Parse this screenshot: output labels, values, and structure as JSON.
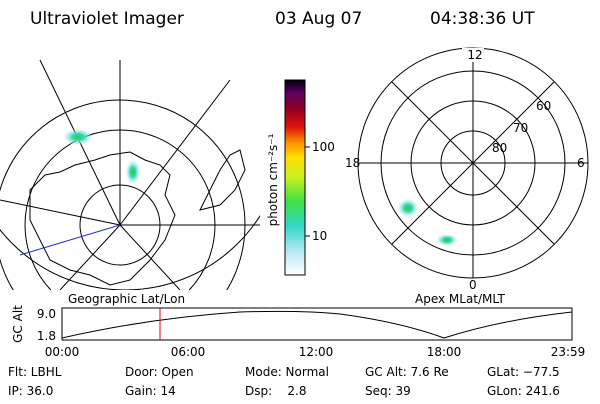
{
  "header": {
    "title": "Ultraviolet Imager",
    "date": "03 Aug 07",
    "time": "04:38:36 UT"
  },
  "colorbar": {
    "label": "photon cm⁻²s⁻¹",
    "ticks": [
      "100",
      "10"
    ]
  },
  "polar_plot": {
    "labels": [
      "12",
      "60",
      "70",
      "80",
      "18",
      "6",
      "0"
    ]
  },
  "panel_labels": [
    "Geographic Lat/Lon",
    "Apex MLat/MLT"
  ],
  "altitude_plot": {
    "ylabel": "GC Alt",
    "yticks": [
      "9.0",
      "1.8"
    ],
    "xticks": [
      "00:00",
      "06:00",
      "12:00",
      "18:00",
      "23:59"
    ]
  },
  "info": {
    "rows": [
      [
        "Flt: LBHL",
        "Door: Open",
        "Mode: Normal",
        "GC Alt: 7.6 Re",
        "GLat: −77.5"
      ],
      [
        "IP: 36.0",
        "Gain: 14",
        "Dsp:    2.8",
        "Seq: 39",
        "GLon: 241.6"
      ]
    ]
  }
}
